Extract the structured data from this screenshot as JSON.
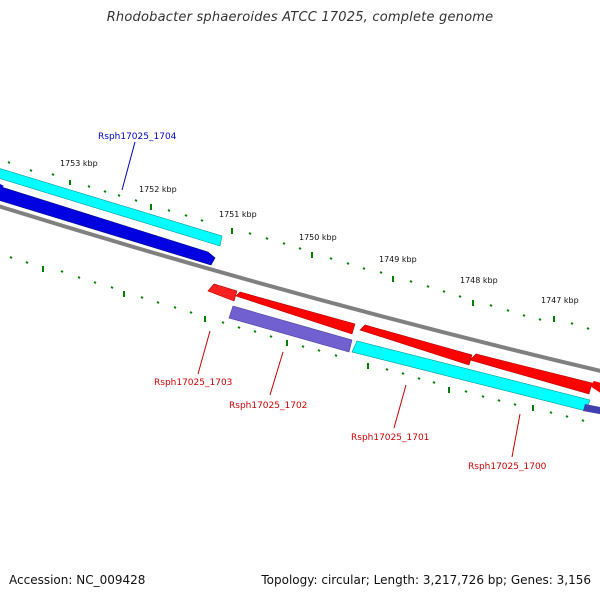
{
  "title": "Rhodobacter sphaeroides ATCC 17025, complete genome",
  "footer": {
    "accession": "Accession: NC_009428",
    "summary": "Topology: circular; Length: 3,217,726 bp; Genes: 3,156"
  },
  "ticks": [
    "1753 kbp",
    "1752 kbp",
    "1751 kbp",
    "1750 kbp",
    "1749 kbp",
    "1748 kbp",
    "1747 kbp"
  ],
  "gene_labels": {
    "g1704": "Rsph17025_1704",
    "g1703": "Rsph17025_1703",
    "g1702": "Rsph17025_1702",
    "g1701": "Rsph17025_1701",
    "g1700": "Rsph17025_1700"
  },
  "colors": {
    "forward_gene": "#0000e0",
    "forward_cds": "#00ffff",
    "reverse_gene": "#ff0000",
    "reverse_cds": "#00ffff",
    "reverse_other": "#7060d0",
    "backbone": "#808080",
    "tick": "#008000",
    "label_forward": "#0000cc",
    "label_reverse": "#cc0000"
  }
}
